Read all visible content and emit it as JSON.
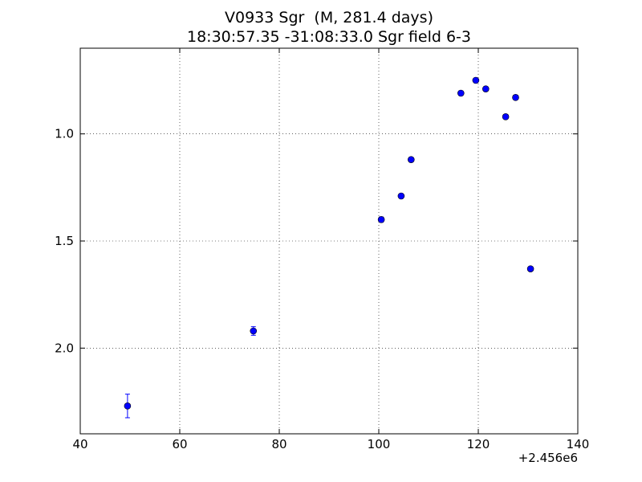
{
  "chart_data": {
    "type": "scatter",
    "title": "V0933 Sgr  (M, 281.4 days)",
    "subtitle": "18:30:57.35 -31:08:33.0 Sgr field 6-3",
    "xlabel": "",
    "ylabel": "",
    "x_offset_label": "+2.456e6",
    "xlim": [
      40,
      140
    ],
    "ylim": [
      2.4,
      0.6
    ],
    "y_inverted": true,
    "grid": true,
    "x_ticks": [
      40,
      60,
      80,
      100,
      120,
      140
    ],
    "y_ticks": [
      1.0,
      1.5,
      2.0
    ],
    "x_tick_labels": [
      "40",
      "60",
      "80",
      "100",
      "120",
      "140"
    ],
    "y_tick_labels": [
      "1.0",
      "1.5",
      "2.0"
    ],
    "marker_color": "#0000ff",
    "points": [
      {
        "x": 49.5,
        "y": 2.27,
        "err": 0.055
      },
      {
        "x": 74.8,
        "y": 1.92,
        "err": 0.02
      },
      {
        "x": 100.5,
        "y": 1.4,
        "err": 0.012
      },
      {
        "x": 104.5,
        "y": 1.29,
        "err": 0.01
      },
      {
        "x": 106.5,
        "y": 1.12,
        "err": 0.01
      },
      {
        "x": 116.5,
        "y": 0.81,
        "err": 0.01
      },
      {
        "x": 119.5,
        "y": 0.75,
        "err": 0.01
      },
      {
        "x": 121.5,
        "y": 0.79,
        "err": 0.01
      },
      {
        "x": 125.5,
        "y": 0.92,
        "err": 0.01
      },
      {
        "x": 127.5,
        "y": 0.83,
        "err": 0.01
      },
      {
        "x": 130.5,
        "y": 1.63,
        "err": 0.01
      }
    ]
  }
}
